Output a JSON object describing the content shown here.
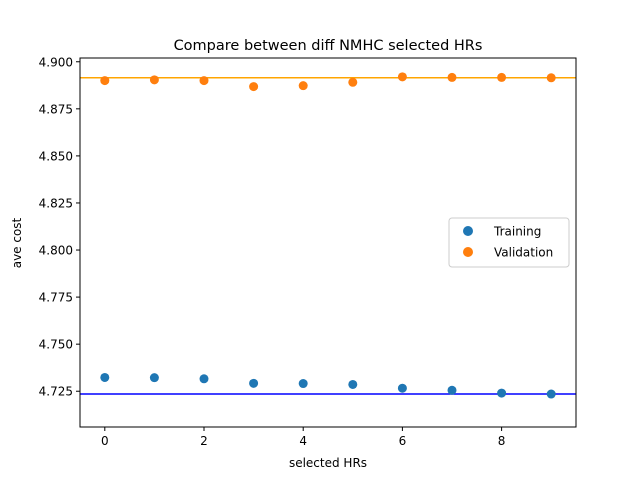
{
  "chart_data": {
    "type": "scatter",
    "title": "Compare between diff NMHC selected HRs",
    "xlabel": "selected HRs",
    "ylabel": "ave cost",
    "xlim": [
      -0.5,
      9.5
    ],
    "ylim": [
      4.706,
      4.902
    ],
    "xticks": [
      0,
      2,
      4,
      6,
      8
    ],
    "yticks": [
      4.725,
      4.75,
      4.775,
      4.8,
      4.825,
      4.85,
      4.875,
      4.9
    ],
    "ytick_labels": [
      "4.725",
      "4.750",
      "4.775",
      "4.800",
      "4.825",
      "4.850",
      "4.875",
      "4.900"
    ],
    "legend_position": "center-right",
    "series": [
      {
        "name": "Training",
        "color": "#1f77b4",
        "x": [
          0,
          1,
          2,
          3,
          4,
          5,
          6,
          7,
          8,
          9
        ],
        "y": [
          4.7323,
          4.7322,
          4.7316,
          4.7292,
          4.7291,
          4.7286,
          4.7266,
          4.7255,
          4.724,
          4.7235
        ]
      },
      {
        "name": "Validation",
        "color": "#ff7f0e",
        "x": [
          0,
          1,
          2,
          3,
          4,
          5,
          6,
          7,
          8,
          9
        ],
        "y": [
          4.89,
          4.8904,
          4.89,
          4.8868,
          4.8873,
          4.8891,
          4.892,
          4.8917,
          4.8917,
          4.8915
        ]
      }
    ],
    "reference_lines": [
      {
        "y": 4.7235,
        "color": "#0000ff"
      },
      {
        "y": 4.8915,
        "color": "#ffa500"
      }
    ]
  }
}
